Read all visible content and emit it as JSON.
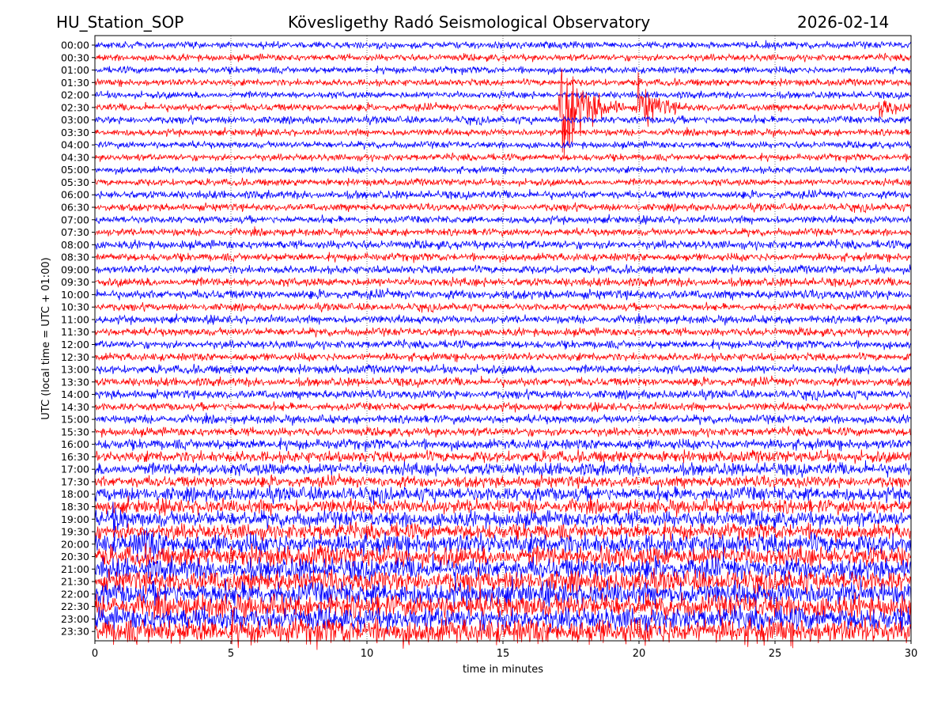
{
  "header": {
    "station": "HU_Station_SOP",
    "title": "Kövesligethy Radó Seismological Observatory",
    "date": "2026-02-14"
  },
  "chart_data": {
    "type": "line",
    "title": "Kövesligethy Radó Seismological Observatory",
    "xlabel": "time in minutes",
    "ylabel": "UTC (local time = UTC + 01:00)",
    "xlim": [
      0,
      30
    ],
    "xticks": [
      "0",
      "5",
      "10",
      "15",
      "20",
      "25",
      "30"
    ],
    "grid": "vertical dotted at 5-minute intervals",
    "colors": [
      "#0000ff",
      "#ff0000"
    ],
    "traces": [
      "00:00",
      "00:30",
      "01:00",
      "01:30",
      "02:00",
      "02:30",
      "03:00",
      "03:30",
      "04:00",
      "04:30",
      "05:00",
      "05:30",
      "06:00",
      "06:30",
      "07:00",
      "07:30",
      "08:00",
      "08:30",
      "09:00",
      "09:30",
      "10:00",
      "10:30",
      "11:00",
      "11:30",
      "12:00",
      "12:30",
      "13:00",
      "13:30",
      "14:00",
      "14:30",
      "15:00",
      "15:30",
      "16:00",
      "16:30",
      "17:00",
      "17:30",
      "18:00",
      "18:30",
      "19:00",
      "19:30",
      "20:00",
      "20:30",
      "21:00",
      "21:30",
      "22:00",
      "22:30",
      "23:00",
      "23:30"
    ],
    "noise_level": [
      0.12,
      0.12,
      0.12,
      0.12,
      0.12,
      0.13,
      0.13,
      0.12,
      0.12,
      0.12,
      0.12,
      0.12,
      0.14,
      0.13,
      0.13,
      0.13,
      0.15,
      0.14,
      0.14,
      0.15,
      0.16,
      0.13,
      0.14,
      0.14,
      0.14,
      0.14,
      0.15,
      0.15,
      0.15,
      0.14,
      0.15,
      0.15,
      0.18,
      0.2,
      0.22,
      0.2,
      0.25,
      0.25,
      0.28,
      0.28,
      0.36,
      0.36,
      0.38,
      0.38,
      0.4,
      0.42,
      0.4,
      0.44
    ],
    "events": [
      {
        "trace": "02:30",
        "start_min": 17.0,
        "end_min": 19.5,
        "peak_amplitude": 2.6
      },
      {
        "trace": "02:30",
        "start_min": 19.9,
        "end_min": 21.8,
        "peak_amplitude": 1.1
      },
      {
        "trace": "02:30",
        "start_min": 28.8,
        "end_min": 30.0,
        "peak_amplitude": 0.5
      },
      {
        "trace": "19:00",
        "start_min": 0.6,
        "end_min": 1.4,
        "peak_amplitude": 0.7
      },
      {
        "trace": "20:00",
        "start_min": 1.5,
        "end_min": 3.5,
        "peak_amplitude": 0.6
      },
      {
        "trace": "20:30",
        "start_min": 18.6,
        "end_min": 19.0,
        "peak_amplitude": 0.8
      }
    ]
  }
}
